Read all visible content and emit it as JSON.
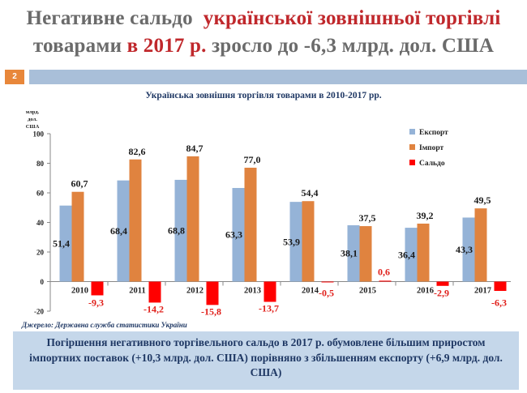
{
  "page": {
    "title_line1_part1": "Негативне сальдо",
    "title_line1_part2": "української зовнішньої торгівлі",
    "title_line2_part1": "товарами",
    "title_line2_part2": "в 2017 р.",
    "title_line2_part3": "зросло до -6,3 млрд. дол. США",
    "slide_number": "2",
    "source": "Джерело: Державна служба статистики України",
    "summary": "Погіршення негативного торгівельного сальдо в 2017 р. обумовлене більшим приростом імпортних поставок (+10,3 млрд. дол. США)  порівняно з збільшенням експорту (+6,9 млрд. дол. США)"
  },
  "chart_data": {
    "type": "bar",
    "title": "Українська зовнішня торгівля  товарами в 2010-2017 рр.",
    "ylabel_lines": [
      "млрд.",
      "дол.",
      "США"
    ],
    "categories": [
      "2010",
      "2011",
      "2012",
      "2013",
      "2014",
      "2015",
      "2016",
      "2017"
    ],
    "series": [
      {
        "name": "Експорт",
        "color": "#95b3d7",
        "values": [
          51.4,
          68.4,
          68.8,
          63.3,
          53.9,
          38.1,
          36.4,
          43.3
        ],
        "labels": [
          "51,4",
          "68,4",
          "68,8",
          "63,3",
          "53,9",
          "38,1",
          "36,4",
          "43,3"
        ]
      },
      {
        "name": "Імпорт",
        "color": "#e0833f",
        "values": [
          60.7,
          82.6,
          84.7,
          77.0,
          54.4,
          37.5,
          39.2,
          49.5
        ],
        "labels": [
          "60,7",
          "82,6",
          "84,7",
          "77,0",
          "54,4",
          "37,5",
          "39,2",
          "49,5"
        ]
      },
      {
        "name": "Сальдо",
        "color": "#ff0000",
        "values": [
          -9.3,
          -14.2,
          -15.8,
          -13.7,
          -0.5,
          0.6,
          -2.9,
          -6.3
        ],
        "labels": [
          "-9,3",
          "-14,2",
          "-15,8",
          "-13,7",
          "-0,5",
          "0,6",
          "-2,9",
          "-6,3"
        ]
      }
    ],
    "ylim": [
      -20,
      100
    ],
    "yticks": [
      -20,
      0,
      20,
      40,
      60,
      80,
      100
    ],
    "grid": false,
    "legend_position": "top-right"
  }
}
